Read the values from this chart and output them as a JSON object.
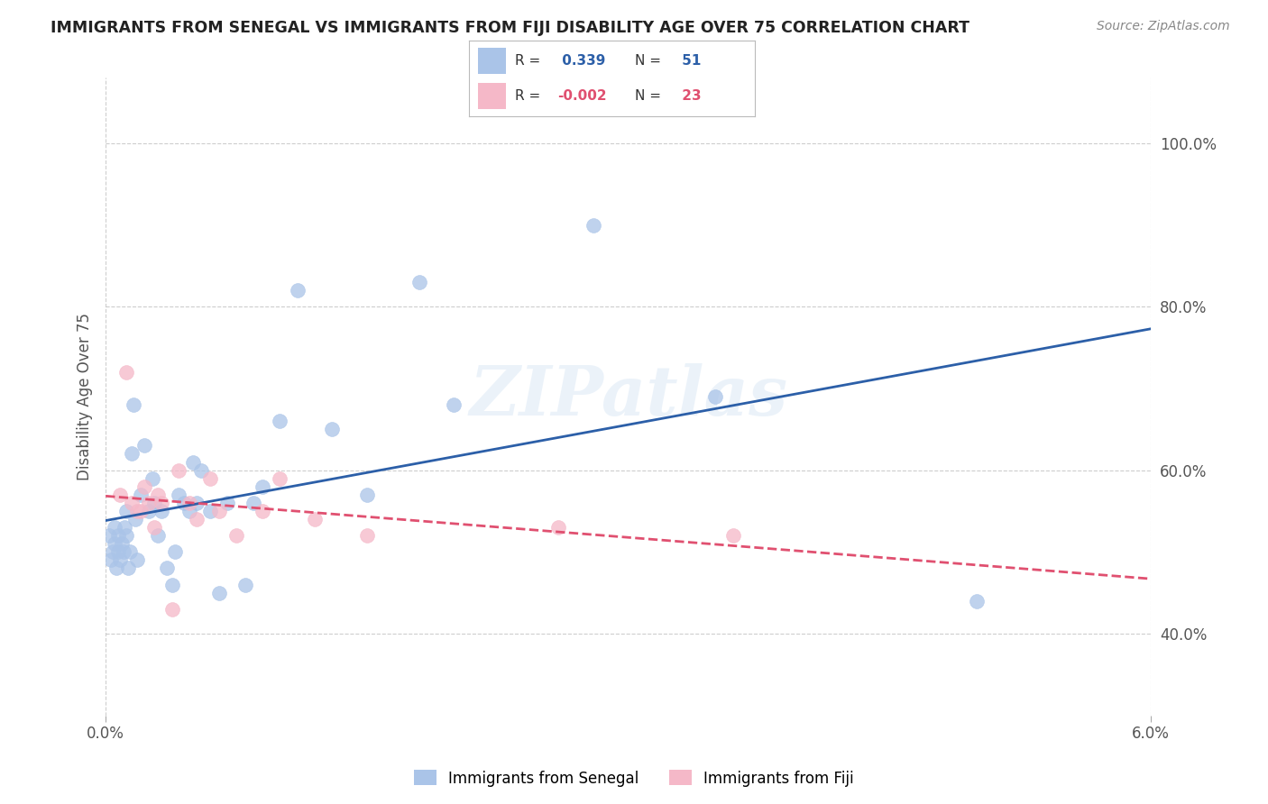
{
  "title": "IMMIGRANTS FROM SENEGAL VS IMMIGRANTS FROM FIJI DISABILITY AGE OVER 75 CORRELATION CHART",
  "source": "Source: ZipAtlas.com",
  "ylabel": "Disability Age Over 75",
  "xlim": [
    0.0,
    6.0
  ],
  "ylim": [
    30.0,
    108.0
  ],
  "xtick_positions": [
    0.0,
    6.0
  ],
  "xtick_labels": [
    "0.0%",
    "6.0%"
  ],
  "ytick_positions": [
    40.0,
    60.0,
    80.0,
    100.0
  ],
  "ytick_labels": [
    "40.0%",
    "60.0%",
    "80.0%",
    "100.0%"
  ],
  "senegal_color": "#aac4e8",
  "fiji_color": "#f5b8c8",
  "senegal_line_color": "#2c5fa8",
  "fiji_line_color": "#e05070",
  "R_senegal": 0.339,
  "N_senegal": 51,
  "R_fiji": -0.002,
  "N_fiji": 23,
  "watermark": "ZIPatlas",
  "background_color": "#ffffff",
  "grid_color": "#c8c8c8",
  "senegal_x": [
    0.02,
    0.03,
    0.04,
    0.05,
    0.05,
    0.06,
    0.07,
    0.07,
    0.08,
    0.09,
    0.1,
    0.11,
    0.12,
    0.12,
    0.13,
    0.14,
    0.15,
    0.16,
    0.17,
    0.18,
    0.2,
    0.22,
    0.25,
    0.27,
    0.28,
    0.3,
    0.32,
    0.35,
    0.38,
    0.4,
    0.42,
    0.45,
    0.48,
    0.5,
    0.52,
    0.55,
    0.6,
    0.65,
    0.7,
    0.8,
    0.85,
    0.9,
    1.0,
    1.1,
    1.3,
    1.5,
    1.8,
    2.0,
    2.8,
    3.5,
    5.0
  ],
  "senegal_y": [
    52.0,
    49.0,
    50.0,
    51.0,
    53.0,
    48.0,
    50.0,
    52.0,
    49.0,
    51.0,
    50.0,
    53.0,
    52.0,
    55.0,
    48.0,
    50.0,
    62.0,
    68.0,
    54.0,
    49.0,
    57.0,
    63.0,
    55.0,
    59.0,
    56.0,
    52.0,
    55.0,
    48.0,
    46.0,
    50.0,
    57.0,
    56.0,
    55.0,
    61.0,
    56.0,
    60.0,
    55.0,
    45.0,
    56.0,
    46.0,
    56.0,
    58.0,
    66.0,
    82.0,
    65.0,
    57.0,
    83.0,
    68.0,
    90.0,
    69.0,
    44.0
  ],
  "fiji_x": [
    0.08,
    0.12,
    0.15,
    0.18,
    0.2,
    0.22,
    0.25,
    0.28,
    0.3,
    0.32,
    0.38,
    0.42,
    0.48,
    0.52,
    0.6,
    0.65,
    0.75,
    0.9,
    1.0,
    1.2,
    1.5,
    2.6,
    3.6
  ],
  "fiji_y": [
    57.0,
    72.0,
    56.0,
    55.0,
    55.0,
    58.0,
    56.0,
    53.0,
    57.0,
    56.0,
    43.0,
    60.0,
    56.0,
    54.0,
    59.0,
    55.0,
    52.0,
    55.0,
    59.0,
    54.0,
    52.0,
    53.0,
    52.0
  ]
}
